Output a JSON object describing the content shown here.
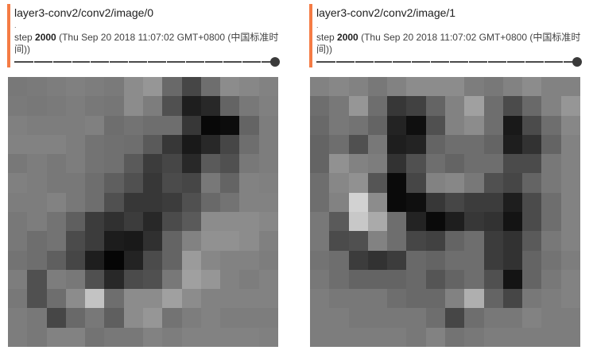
{
  "cards": [
    {
      "title": "layer3-conv2/conv2/image/0",
      "dot": ".",
      "step_label": "step",
      "step_value": "2000",
      "timestamp": "(Thu Sep 20 2018 11:07:02 GMT+0800 (中国标准时间))",
      "slider_position": 1.0,
      "grid": [
        [
          120,
          122,
          125,
          128,
          125,
          122,
          140,
          150,
          105,
          70,
          110,
          140,
          135,
          130
        ],
        [
          122,
          120,
          122,
          125,
          120,
          118,
          140,
          125,
          80,
          30,
          40,
          100,
          120,
          128
        ],
        [
          128,
          125,
          125,
          125,
          128,
          110,
          115,
          110,
          110,
          55,
          8,
          12,
          100,
          125
        ],
        [
          130,
          130,
          130,
          125,
          115,
          112,
          110,
          90,
          55,
          25,
          40,
          70,
          110,
          125
        ],
        [
          120,
          125,
          120,
          125,
          115,
          112,
          90,
          60,
          70,
          40,
          90,
          80,
          120,
          125
        ],
        [
          128,
          125,
          120,
          120,
          110,
          95,
          80,
          55,
          75,
          70,
          120,
          100,
          130,
          128
        ],
        [
          125,
          125,
          130,
          120,
          110,
          80,
          55,
          55,
          60,
          80,
          105,
          115,
          130,
          130
        ],
        [
          120,
          125,
          115,
          95,
          60,
          48,
          60,
          40,
          75,
          90,
          140,
          140,
          140,
          135
        ],
        [
          120,
          110,
          115,
          75,
          60,
          28,
          25,
          48,
          100,
          130,
          145,
          145,
          140,
          128
        ],
        [
          115,
          110,
          95,
          70,
          30,
          5,
          35,
          75,
          100,
          155,
          135,
          130,
          130,
          125
        ],
        [
          125,
          80,
          125,
          120,
          80,
          40,
          75,
          80,
          120,
          160,
          150,
          130,
          125,
          130
        ],
        [
          120,
          80,
          110,
          140,
          195,
          110,
          140,
          140,
          160,
          140,
          130,
          130,
          130,
          130
        ],
        [
          125,
          120,
          70,
          105,
          120,
          95,
          140,
          150,
          115,
          125,
          130,
          125,
          125,
          125
        ],
        [
          125,
          120,
          130,
          130,
          115,
          120,
          120,
          130,
          125,
          130,
          130,
          130,
          130,
          128
        ]
      ]
    },
    {
      "title": "layer3-conv2/conv2/image/1",
      "dot": ".",
      "step_label": "step",
      "step_value": "2000",
      "timestamp": "(Thu Sep 20 2018 11:07:02 GMT+0800 (中国标准时间))",
      "slider_position": 1.0,
      "grid": [
        [
          130,
          135,
          130,
          120,
          130,
          140,
          140,
          140,
          125,
          120,
          130,
          140,
          130,
          130
        ],
        [
          110,
          120,
          150,
          110,
          55,
          65,
          100,
          130,
          160,
          110,
          75,
          105,
          130,
          150
        ],
        [
          105,
          120,
          115,
          100,
          35,
          15,
          80,
          130,
          140,
          110,
          25,
          75,
          110,
          135
        ],
        [
          100,
          110,
          80,
          120,
          30,
          35,
          100,
          110,
          110,
          100,
          30,
          50,
          100,
          130
        ],
        [
          100,
          145,
          130,
          125,
          50,
          80,
          110,
          100,
          110,
          110,
          75,
          75,
          120,
          130
        ],
        [
          110,
          135,
          145,
          85,
          10,
          70,
          130,
          135,
          120,
          80,
          70,
          100,
          120,
          130
        ],
        [
          110,
          130,
          210,
          140,
          10,
          15,
          55,
          70,
          60,
          60,
          30,
          75,
          110,
          130
        ],
        [
          120,
          90,
          200,
          170,
          110,
          35,
          10,
          30,
          55,
          50,
          20,
          75,
          110,
          130
        ],
        [
          120,
          75,
          80,
          130,
          110,
          70,
          65,
          100,
          110,
          60,
          50,
          90,
          120,
          130
        ],
        [
          115,
          110,
          60,
          50,
          60,
          105,
          100,
          110,
          110,
          60,
          50,
          100,
          115,
          125
        ],
        [
          120,
          110,
          100,
          100,
          100,
          105,
          85,
          100,
          110,
          80,
          20,
          100,
          120,
          130
        ],
        [
          125,
          120,
          120,
          120,
          110,
          105,
          105,
          130,
          175,
          100,
          70,
          120,
          125,
          130
        ],
        [
          125,
          125,
          120,
          120,
          120,
          120,
          110,
          70,
          110,
          120,
          120,
          130,
          125,
          125
        ],
        [
          125,
          125,
          125,
          125,
          125,
          120,
          130,
          115,
          120,
          125,
          125,
          125,
          125,
          125
        ]
      ]
    }
  ]
}
